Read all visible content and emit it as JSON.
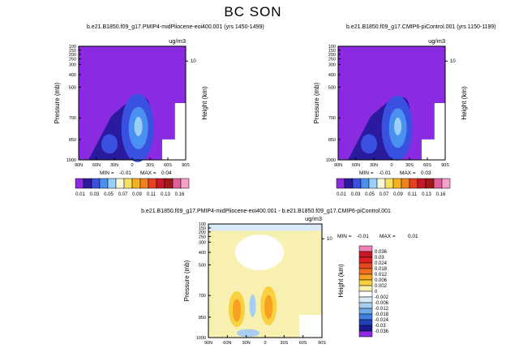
{
  "figure": {
    "title": "BC SON"
  },
  "chart_data": [
    {
      "type": "heatmap",
      "panel": "left",
      "title": "b.e21.B1850.f09_g17.PMIP4-midPliocene-eoi400.001 (yrs 1450-1499)",
      "units": "ug/m3",
      "xlabel": "",
      "ylabel": "Pressure (mb)",
      "ylabel_right": "Height (km)",
      "x_ticks": [
        "90N",
        "60N",
        "30N",
        "0",
        "30S",
        "60S",
        "90S"
      ],
      "y_ticks": [
        "100",
        "150",
        "200",
        "250",
        "300",
        "400",
        "500",
        "700",
        "850",
        "1000"
      ],
      "right_ticks": [
        "10"
      ],
      "stats": {
        "min_label": "MIN =",
        "min": "-0.01",
        "max_label": "MAX =",
        "max": "0.04"
      },
      "colorbar": {
        "labels": [
          "0.01",
          "0.03",
          "0.05",
          "0.07",
          "0.09",
          "0.11",
          "0.13",
          "0.16"
        ],
        "colors": [
          "#8a2be2",
          "#2a1a9e",
          "#3a50e0",
          "#4a90f0",
          "#9ad0f8",
          "#f8f8d8",
          "#f8e060",
          "#f8b020",
          "#f08020",
          "#e84020",
          "#c81828",
          "#a01818",
          "#e0609a",
          "#f4a0c8"
        ]
      },
      "peak_value": 0.04
    },
    {
      "type": "heatmap",
      "panel": "right",
      "title": "b.e21.B1850.f09_g17.CMIP6-piControl.001 (yrs 1150-1199)",
      "units": "ug/m3",
      "xlabel": "",
      "ylabel": "Pressure (mb)",
      "ylabel_right": "Height (km)",
      "x_ticks": [
        "90N",
        "60N",
        "30N",
        "0",
        "30S",
        "60S",
        "90S"
      ],
      "y_ticks": [
        "100",
        "150",
        "200",
        "250",
        "300",
        "400",
        "500",
        "700",
        "850",
        "1000"
      ],
      "right_ticks": [
        "10"
      ],
      "stats": {
        "min_label": "MIN =",
        "min": "-0.01",
        "max_label": "MAX =",
        "max": "0.03"
      },
      "colorbar": {
        "labels": [
          "0.01",
          "0.03",
          "0.05",
          "0.07",
          "0.09",
          "0.11",
          "0.13",
          "0.16"
        ],
        "colors": [
          "#8a2be2",
          "#2a1a9e",
          "#3a50e0",
          "#4a90f0",
          "#9ad0f8",
          "#f8f8d8",
          "#f8e060",
          "#f8b020",
          "#f08020",
          "#e84020",
          "#c81828",
          "#a01818",
          "#e0609a",
          "#f4a0c8"
        ]
      },
      "peak_value": 0.03
    },
    {
      "type": "heatmap",
      "panel": "bottom",
      "title": "b.e21.B1850.f09_g17.PMIP4-midPliocene-eoi400.001 - b.e21.B1850.f09_g17.CMIP6-piControl.001",
      "units": "ug/m3",
      "xlabel": "",
      "ylabel": "Pressure (mb)",
      "ylabel_right": "Height (km)",
      "x_ticks": [
        "90N",
        "60N",
        "30N",
        "0",
        "30S",
        "60S",
        "90S"
      ],
      "y_ticks": [
        "100",
        "150",
        "200",
        "250",
        "300",
        "400",
        "500",
        "700",
        "850",
        "1000"
      ],
      "right_ticks": [
        "10"
      ],
      "stats": {
        "min_label": "MIN =",
        "min": "-0.01",
        "max_label": "MAX =",
        "max": "0.01"
      },
      "colorbar": {
        "labels": [
          "0.036",
          "0.03",
          "0.024",
          "0.018",
          "0.012",
          "0.006",
          "0.002",
          "0",
          "-0.002",
          "-0.006",
          "-0.012",
          "-0.018",
          "-0.024",
          "-0.03",
          "-0.036"
        ],
        "colors": [
          "#f080b8",
          "#c81828",
          "#e02020",
          "#e84820",
          "#f07020",
          "#f8a020",
          "#f8d040",
          "#f8f0b0",
          "#ffffff",
          "#d8eaf8",
          "#a8cff0",
          "#70a8e8",
          "#4080e0",
          "#2040b8",
          "#1a1a90",
          "#8a2be2"
        ]
      }
    }
  ]
}
